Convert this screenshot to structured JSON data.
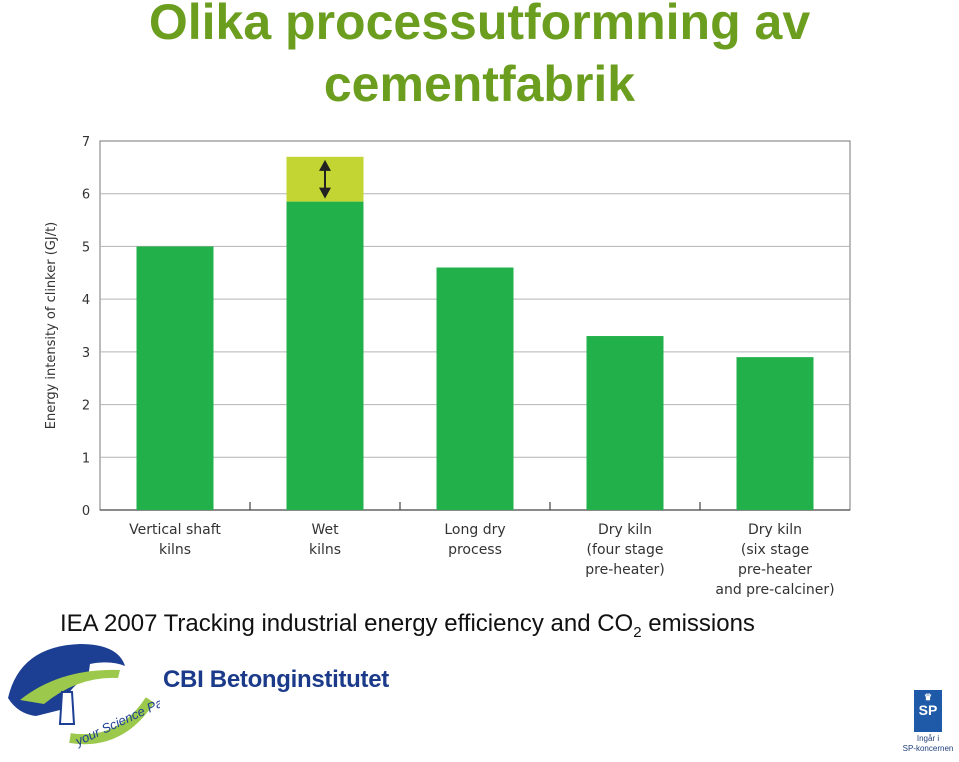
{
  "slide": {
    "title_line1": "Olika processutformning av",
    "title_line2": "cementfabrik",
    "caption_main": "IEA  2007 Tracking industrial energy efficiency and CO",
    "caption_sub": "2",
    "caption_end": " emissions"
  },
  "logos": {
    "partner_text": "your Science Partner",
    "cbi_name": "CBI Betonginstitutet",
    "sp_mark": "SP",
    "sp_sub_line1": "Ingår i",
    "sp_sub_line2": "SP-koncernen"
  },
  "colors": {
    "title": "#6b9e1f",
    "bar": "#22b04b",
    "range": "#c3d533",
    "grid": "#b3b3b3",
    "caption": "#111111"
  },
  "chart_data": {
    "type": "bar",
    "ylabel": "Energy intensity of clinker (GJ/t)",
    "ylim": [
      0,
      7
    ],
    "yticks": [
      0,
      1,
      2,
      3,
      4,
      5,
      6,
      7
    ],
    "grid": true,
    "categories": [
      [
        "Vertical shaft",
        "kilns"
      ],
      [
        "Wet",
        "kilns"
      ],
      [
        "Long dry",
        "process"
      ],
      [
        "Dry kiln",
        "(four stage",
        "pre-heater)"
      ],
      [
        "Dry kiln",
        "(six stage",
        "pre-heater",
        "and pre-calciner)"
      ]
    ],
    "values": [
      5.0,
      5.85,
      4.6,
      3.3,
      2.9
    ],
    "range_top": [
      null,
      6.7,
      null,
      null,
      null
    ]
  }
}
